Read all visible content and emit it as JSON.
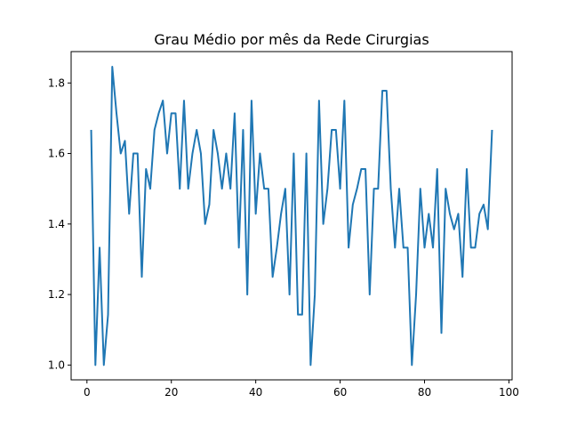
{
  "chart_data": {
    "type": "line",
    "title": "Grau Médio por mês da Rede Cirurgias",
    "xlabel": "",
    "ylabel": "",
    "xlim": [
      -3.75,
      100.75
    ],
    "ylim": [
      0.958,
      1.889
    ],
    "xticks": [
      0,
      20,
      40,
      60,
      80,
      100
    ],
    "yticks": [
      1.0,
      1.2,
      1.4,
      1.6,
      1.8
    ],
    "ytick_labels": [
      "1.0",
      "1.2",
      "1.4",
      "1.6",
      "1.8"
    ],
    "grid": false,
    "legend": "none",
    "series": [
      {
        "color": "#1f77b4",
        "x": [
          1,
          2,
          3,
          4,
          5,
          6,
          7,
          8,
          9,
          10,
          11,
          12,
          13,
          14,
          15,
          16,
          17,
          18,
          19,
          20,
          21,
          22,
          23,
          24,
          25,
          26,
          27,
          28,
          29,
          30,
          31,
          32,
          33,
          34,
          35,
          36,
          37,
          38,
          39,
          40,
          41,
          42,
          43,
          44,
          45,
          46,
          47,
          48,
          49,
          50,
          51,
          52,
          53,
          54,
          55,
          56,
          57,
          58,
          59,
          60,
          61,
          62,
          63,
          64,
          65,
          66,
          67,
          68,
          69,
          70,
          71,
          72,
          73,
          74,
          75,
          76,
          77,
          78,
          79,
          80,
          81,
          82,
          83,
          84,
          85,
          86,
          87,
          88,
          89,
          90,
          91,
          92,
          93,
          94,
          95,
          96
        ],
        "values": [
          1.667,
          1.0,
          1.333,
          1.0,
          1.143,
          1.846,
          1.714,
          1.6,
          1.636,
          1.429,
          1.6,
          1.6,
          1.25,
          1.556,
          1.5,
          1.667,
          1.714,
          1.75,
          1.6,
          1.714,
          1.714,
          1.5,
          1.75,
          1.5,
          1.6,
          1.667,
          1.6,
          1.4,
          1.455,
          1.667,
          1.6,
          1.5,
          1.6,
          1.5,
          1.714,
          1.333,
          1.667,
          1.2,
          1.75,
          1.429,
          1.6,
          1.5,
          1.5,
          1.25,
          1.333,
          1.429,
          1.5,
          1.2,
          1.6,
          1.143,
          1.143,
          1.6,
          1.0,
          1.2,
          1.75,
          1.4,
          1.5,
          1.667,
          1.667,
          1.5,
          1.75,
          1.333,
          1.455,
          1.5,
          1.556,
          1.556,
          1.2,
          1.5,
          1.5,
          1.778,
          1.778,
          1.5,
          1.333,
          1.5,
          1.333,
          1.333,
          1.0,
          1.2,
          1.5,
          1.333,
          1.429,
          1.333,
          1.556,
          1.091,
          1.5,
          1.429,
          1.385,
          1.429,
          1.25,
          1.556,
          1.333,
          1.333,
          1.429,
          1.455,
          1.385,
          1.667
        ]
      }
    ]
  }
}
